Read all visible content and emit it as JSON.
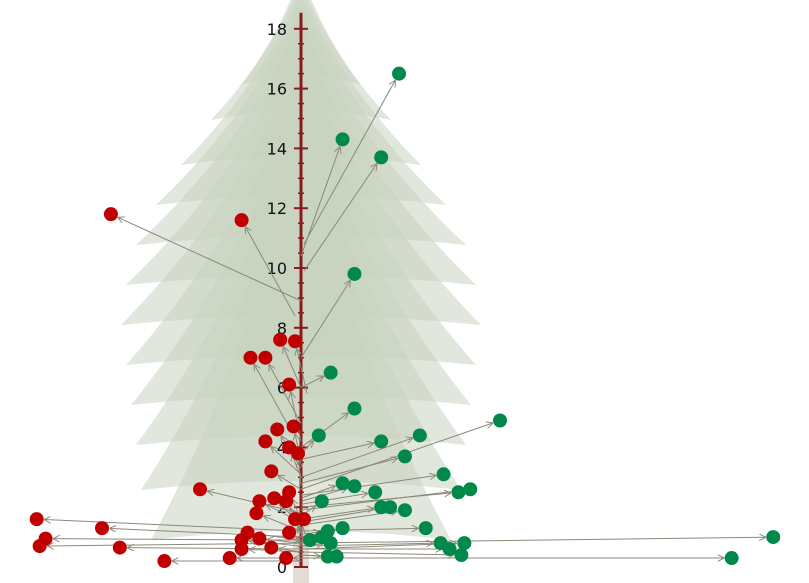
{
  "chart_data": {
    "type": "scatter",
    "title": "",
    "xlabel": "",
    "ylabel": "",
    "ylim": [
      0,
      18
    ],
    "xlim": [
      -9,
      16.5
    ],
    "y_ticks": [
      "0",
      "2",
      "4",
      "6",
      "8",
      "10",
      "12",
      "14",
      "16",
      "18"
    ],
    "grid": false,
    "legend": "none",
    "colors": {
      "left": "#c00000",
      "right": "#00894a",
      "axis": "#8b1a1a",
      "arrow": "#8c8878",
      "tree": "#c9d4bf"
    },
    "background_image": "spruce-tree",
    "series": [
      {
        "side": "left",
        "points": [
          {
            "x": -6.4,
            "y": 11.8,
            "ox": 0,
            "oy": 8.9
          },
          {
            "x": -2.0,
            "y": 11.6,
            "ox": -0.2,
            "oy": 8.4
          },
          {
            "x": -0.7,
            "y": 7.6,
            "ox": 0,
            "oy": 6.0
          },
          {
            "x": -0.2,
            "y": 7.55,
            "ox": 0.2,
            "oy": 5.8
          },
          {
            "x": -1.7,
            "y": 7.0,
            "ox": -0.3,
            "oy": 4.5
          },
          {
            "x": -1.2,
            "y": 7.0,
            "ox": 0,
            "oy": 4.8
          },
          {
            "x": -0.4,
            "y": 6.1,
            "ox": 0,
            "oy": 4.2
          },
          {
            "x": -0.25,
            "y": 4.7,
            "ox": 0,
            "oy": 3.5
          },
          {
            "x": -0.8,
            "y": 4.6,
            "ox": 0,
            "oy": 3.3
          },
          {
            "x": -1.2,
            "y": 4.2,
            "ox": 0,
            "oy": 3.1
          },
          {
            "x": -0.4,
            "y": 4.0,
            "ox": 0,
            "oy": 3.0
          },
          {
            "x": -0.1,
            "y": 3.8,
            "ox": 0,
            "oy": 2.7
          },
          {
            "x": -1.0,
            "y": 3.2,
            "ox": 0,
            "oy": 2.6
          },
          {
            "x": -3.4,
            "y": 2.6,
            "ox": 0,
            "oy": 1.8
          },
          {
            "x": -0.4,
            "y": 2.5,
            "ox": 0,
            "oy": 1.6
          },
          {
            "x": -1.4,
            "y": 2.2,
            "ox": 0,
            "oy": 1.5
          },
          {
            "x": -0.9,
            "y": 2.3,
            "ox": 0,
            "oy": 1.4
          },
          {
            "x": -0.5,
            "y": 2.2,
            "ox": 0,
            "oy": 1.3
          },
          {
            "x": -1.5,
            "y": 1.8,
            "ox": 0,
            "oy": 1.2
          },
          {
            "x": -0.2,
            "y": 1.6,
            "ox": 0,
            "oy": 1.1
          },
          {
            "x": 0.1,
            "y": 1.6,
            "ox": 0,
            "oy": 1.0
          },
          {
            "x": -0.4,
            "y": 1.15,
            "ox": 0,
            "oy": 0.9
          },
          {
            "x": -1.8,
            "y": 1.15,
            "ox": 0,
            "oy": 0.9
          },
          {
            "x": -1.4,
            "y": 0.95,
            "ox": 0,
            "oy": 0.8
          },
          {
            "x": -2.0,
            "y": 0.9,
            "ox": 0,
            "oy": 0.7
          },
          {
            "x": -8.9,
            "y": 1.6,
            "ox": 0,
            "oy": 1.2
          },
          {
            "x": -6.7,
            "y": 1.3,
            "ox": 0,
            "oy": 1.0
          },
          {
            "x": -8.6,
            "y": 0.95,
            "ox": 0,
            "oy": 0.9
          },
          {
            "x": -8.8,
            "y": 0.7,
            "ox": 0,
            "oy": 0.8
          },
          {
            "x": -6.1,
            "y": 0.65,
            "ox": 0,
            "oy": 0.6
          },
          {
            "x": -2.0,
            "y": 0.6,
            "ox": 0,
            "oy": 0.5
          },
          {
            "x": -1.0,
            "y": 0.65,
            "ox": 0,
            "oy": 0.5
          },
          {
            "x": -0.5,
            "y": 0.3,
            "ox": 0,
            "oy": 0.3
          },
          {
            "x": -2.4,
            "y": 0.3,
            "ox": 0,
            "oy": 0.3
          },
          {
            "x": -4.6,
            "y": 0.2,
            "ox": 0,
            "oy": 0.2
          }
        ]
      },
      {
        "side": "right",
        "points": [
          {
            "x": 3.3,
            "y": 16.5,
            "ox": 0.1,
            "oy": 10.8
          },
          {
            "x": 1.4,
            "y": 14.3,
            "ox": 0,
            "oy": 10.4
          },
          {
            "x": 2.7,
            "y": 13.7,
            "ox": 0.1,
            "oy": 9.9
          },
          {
            "x": 1.8,
            "y": 9.8,
            "ox": 0,
            "oy": 7.0
          },
          {
            "x": 1.0,
            "y": 6.5,
            "ox": 0,
            "oy": 6.0
          },
          {
            "x": 1.8,
            "y": 5.3,
            "ox": 0,
            "oy": 4.0
          },
          {
            "x": 0.6,
            "y": 4.4,
            "ox": 0,
            "oy": 3.8
          },
          {
            "x": 2.7,
            "y": 4.2,
            "ox": 0,
            "oy": 3.6
          },
          {
            "x": 4.0,
            "y": 4.4,
            "ox": 0,
            "oy": 3.0
          },
          {
            "x": 6.7,
            "y": 4.9,
            "ox": 0,
            "oy": 2.6
          },
          {
            "x": 3.5,
            "y": 3.7,
            "ox": 0,
            "oy": 2.8
          },
          {
            "x": 4.8,
            "y": 3.1,
            "ox": 0,
            "oy": 2.4
          },
          {
            "x": 1.4,
            "y": 2.8,
            "ox": 0,
            "oy": 2.3
          },
          {
            "x": 1.8,
            "y": 2.7,
            "ox": 0,
            "oy": 2.2
          },
          {
            "x": 2.5,
            "y": 2.5,
            "ox": 0,
            "oy": 2.1
          },
          {
            "x": 5.3,
            "y": 2.5,
            "ox": 0,
            "oy": 2.0
          },
          {
            "x": 5.7,
            "y": 2.6,
            "ox": 0,
            "oy": 1.9
          },
          {
            "x": 0.7,
            "y": 2.2,
            "ox": 0,
            "oy": 1.7
          },
          {
            "x": 2.7,
            "y": 2.0,
            "ox": 0,
            "oy": 1.6
          },
          {
            "x": 3.0,
            "y": 2.0,
            "ox": 0,
            "oy": 1.5
          },
          {
            "x": 3.5,
            "y": 1.9,
            "ox": 0,
            "oy": 1.4
          },
          {
            "x": 4.2,
            "y": 1.3,
            "ox": 0,
            "oy": 1.2
          },
          {
            "x": 0.9,
            "y": 1.2,
            "ox": 0,
            "oy": 1.1
          },
          {
            "x": 1.4,
            "y": 1.3,
            "ox": 0,
            "oy": 1.0
          },
          {
            "x": 0.7,
            "y": 1.0,
            "ox": 0,
            "oy": 0.9
          },
          {
            "x": 0.3,
            "y": 0.9,
            "ox": 0,
            "oy": 0.8
          },
          {
            "x": 1.0,
            "y": 0.8,
            "ox": 0,
            "oy": 0.7
          },
          {
            "x": 4.7,
            "y": 0.8,
            "ox": 0,
            "oy": 0.7
          },
          {
            "x": 5.5,
            "y": 0.8,
            "ox": 0,
            "oy": 0.6
          },
          {
            "x": 5.0,
            "y": 0.6,
            "ox": 0,
            "oy": 0.6
          },
          {
            "x": 5.4,
            "y": 0.4,
            "ox": 0,
            "oy": 0.5
          },
          {
            "x": 0.9,
            "y": 0.35,
            "ox": 0,
            "oy": 0.4
          },
          {
            "x": 1.2,
            "y": 0.35,
            "ox": 0,
            "oy": 0.4
          },
          {
            "x": 15.9,
            "y": 1.0,
            "ox": 0,
            "oy": 0.8
          },
          {
            "x": 14.5,
            "y": 0.3,
            "ox": 0,
            "oy": 0.3
          }
        ]
      }
    ]
  }
}
